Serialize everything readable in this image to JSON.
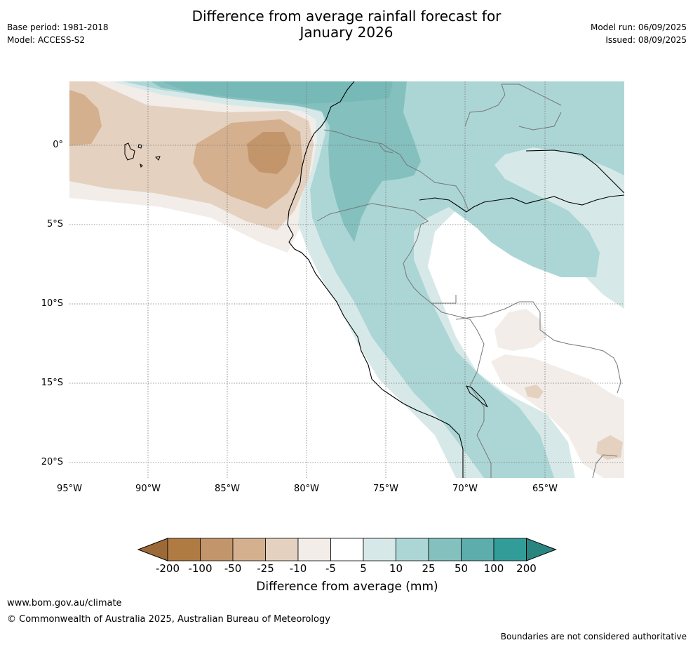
{
  "header": {
    "title_line1": "Difference from average rainfall forecast for",
    "title_line2": "January 2026",
    "base_period": "Base period: 1981-2018",
    "model": "Model: ACCESS-S2",
    "model_run": "Model run: 06/09/2025",
    "issued": "Issued: 08/09/2025"
  },
  "map": {
    "lat_labels": [
      "0°",
      "5°S",
      "10°S",
      "15°S",
      "20°S"
    ],
    "lon_labels": [
      "95°W",
      "90°W",
      "85°W",
      "80°W",
      "75°W",
      "70°W",
      "65°W"
    ]
  },
  "colorbar": {
    "label": "Difference from average (mm)",
    "ticks": [
      "-200",
      "-100",
      "-50",
      "-25",
      "-10",
      "-5",
      "5",
      "10",
      "25",
      "50",
      "100",
      "200"
    ],
    "colors": [
      "#9c6a38",
      "#b07a43",
      "#c2956a",
      "#d4b08f",
      "#e4d1bf",
      "#f2ede8",
      "#ffffff",
      "#d6e9e8",
      "#acd6d5",
      "#84c0be",
      "#5cadab",
      "#329c98",
      "#2a8580"
    ]
  },
  "footer": {
    "url": "www.bom.gov.au/climate",
    "copyright": "© Commonwealth of Australia 2025, Australian Bureau of Meteorology",
    "disclaimer": "Boundaries are not considered authoritative"
  }
}
